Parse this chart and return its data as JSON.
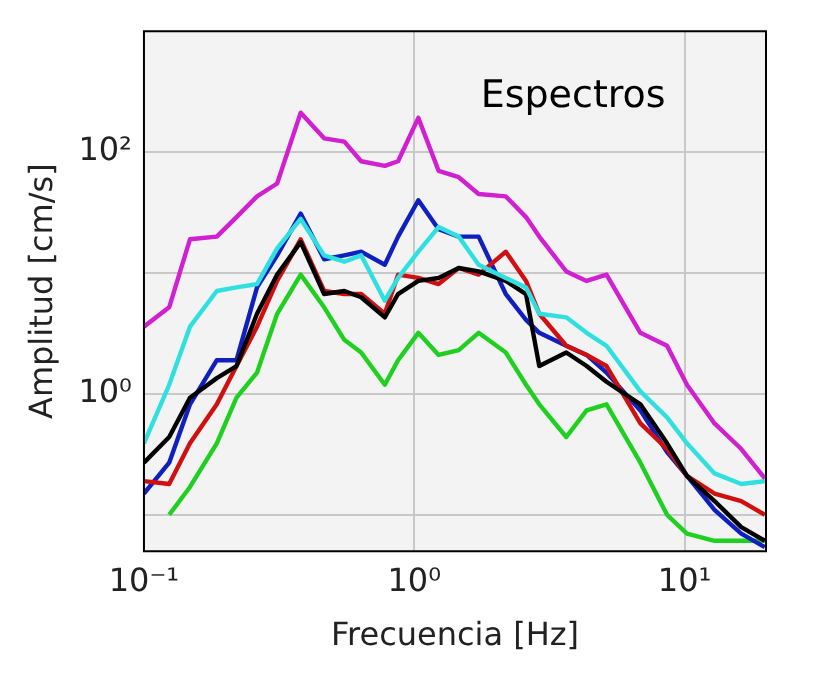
{
  "chart_data": {
    "type": "line",
    "title": "Espectros",
    "xlabel": "Frecuencia [Hz]",
    "ylabel": "Amplitud [cm/s]",
    "log": "xy",
    "grid": true,
    "legend": false,
    "marker": "none",
    "line_style": "solid",
    "xlim": [
      0.1,
      20
    ],
    "ylim": [
      0.05,
      1000
    ],
    "xticks": [
      {
        "value": 0.1,
        "label": "10⁻¹"
      },
      {
        "value": 1,
        "label": "10⁰"
      },
      {
        "value": 10,
        "label": "10¹"
      }
    ],
    "yticks": [
      {
        "value": 0.1,
        "label": null
      },
      {
        "value": 1,
        "label": "10⁰"
      },
      {
        "value": 10,
        "label": null
      },
      {
        "value": 100,
        "label": "10²"
      }
    ],
    "x": [
      0.1,
      0.124,
      0.148,
      0.186,
      0.22,
      0.262,
      0.311,
      0.38,
      0.464,
      0.551,
      0.636,
      0.778,
      0.871,
      1.035,
      1.23,
      1.46,
      1.73,
      2.18,
      2.59,
      2.9,
      3.65,
      4.34,
      5.14,
      6.86,
      8.61,
      10.2,
      12.9,
      16.2,
      19.8
    ],
    "series": [
      {
        "color": "#d020d0",
        "values": [
          3.6,
          5.2,
          19,
          20,
          29,
          43,
          55,
          212,
          130,
          122,
          84,
          77,
          84,
          192,
          70,
          62,
          45,
          43,
          29,
          20,
          10.3,
          8.6,
          9.7,
          3.2,
          2.5,
          1.19,
          0.57,
          0.35,
          0.2
        ]
      },
      {
        "color": "#30e0e0",
        "values": [
          0.39,
          1.19,
          3.6,
          7.1,
          7.6,
          8.1,
          16,
          28,
          14,
          12.4,
          14,
          5.9,
          9.1,
          15,
          24,
          20,
          11.7,
          9.1,
          7.6,
          4.6,
          4.3,
          3.2,
          2.5,
          1.05,
          0.64,
          0.39,
          0.22,
          0.18,
          0.19
        ]
      },
      {
        "color": "#000000",
        "values": [
          0.27,
          0.44,
          0.93,
          1.35,
          1.7,
          4.6,
          9.7,
          18,
          6.7,
          7.1,
          6.3,
          4.3,
          6.7,
          8.6,
          9.1,
          11,
          10.3,
          8.6,
          6.7,
          1.7,
          2.2,
          1.7,
          1.26,
          0.82,
          0.39,
          0.21,
          0.13,
          0.079,
          0.061
        ]
      },
      {
        "color": "#d01010",
        "values": [
          0.19,
          0.18,
          0.39,
          0.82,
          1.7,
          3.6,
          8.6,
          19,
          7.1,
          6.7,
          6.7,
          4.6,
          9.7,
          9.1,
          8.1,
          11,
          9.7,
          15,
          8.6,
          4.6,
          2.5,
          2.1,
          1.7,
          0.57,
          0.35,
          0.21,
          0.15,
          0.13,
          0.1
        ]
      },
      {
        "color": "#1020c0",
        "values": [
          0.15,
          0.27,
          0.82,
          1.9,
          1.9,
          7.6,
          14,
          31,
          13,
          14,
          15,
          11.7,
          20,
          40,
          23,
          20,
          20,
          6.7,
          4.1,
          3.2,
          2.5,
          2.1,
          1.5,
          0.73,
          0.33,
          0.21,
          0.11,
          0.07,
          0.054
        ]
      },
      {
        "color": "#20d020",
        "values": [
          null,
          0.1,
          0.17,
          0.39,
          0.93,
          1.5,
          4.6,
          9.7,
          5.2,
          2.8,
          2.2,
          1.19,
          1.9,
          3.2,
          2.1,
          2.3,
          3.2,
          2.2,
          1.19,
          0.82,
          0.44,
          0.73,
          0.82,
          0.27,
          0.1,
          0.07,
          0.061,
          null,
          0.061
        ]
      }
    ]
  }
}
